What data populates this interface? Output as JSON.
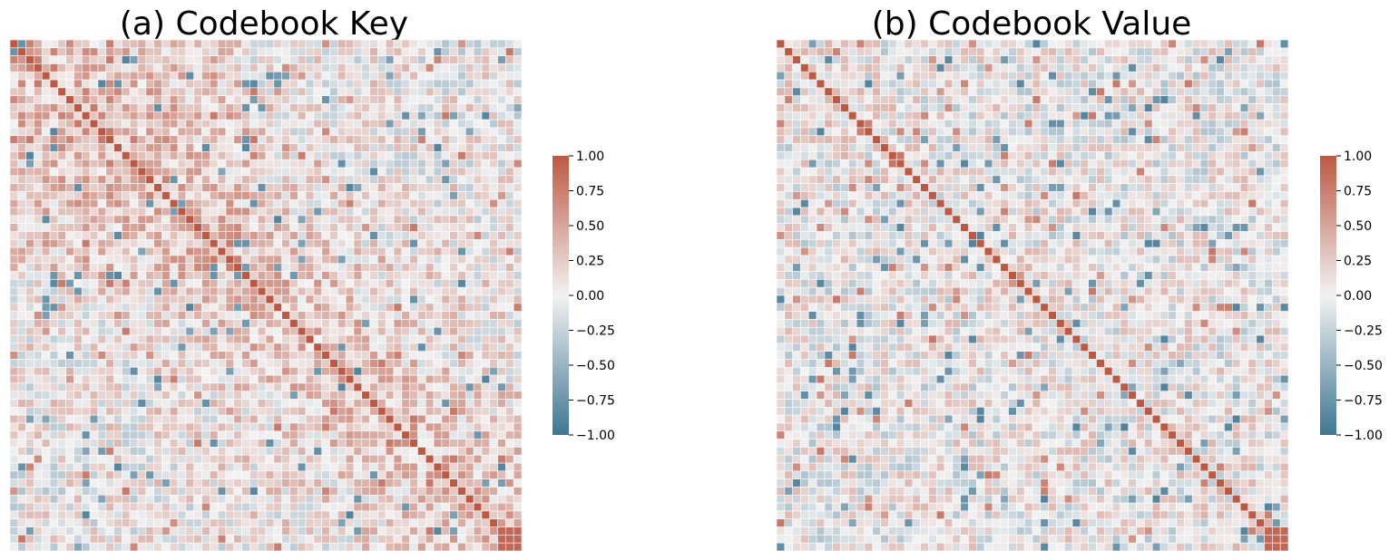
{
  "chart_data": [
    {
      "type": "heatmap",
      "title": "(a) Codebook Key",
      "xlabel": "",
      "ylabel": "",
      "n": 64,
      "matrix_form": "symmetric correlation matrix with unit diagonal",
      "diagonal_value": 1.0,
      "block_near_diagonal": "dense positive correlations (~0.2-0.5) in upper-left region",
      "colorbar": {
        "min": -1.0,
        "max": 1.0,
        "ticks": [
          "1.00",
          "0.75",
          "0.50",
          "0.25",
          "0.00",
          "−0.25",
          "−0.50",
          "−0.75",
          "−1.00"
        ],
        "tick_values": [
          1.0,
          0.75,
          0.5,
          0.25,
          0.0,
          -0.25,
          -0.5,
          -0.75,
          -1.0
        ],
        "colormap": "diverging",
        "color_negative": "#3e7693",
        "color_center": "#f2f2f2",
        "color_positive": "#bd5843"
      }
    },
    {
      "type": "heatmap",
      "title": "(b) Codebook Value",
      "xlabel": "",
      "ylabel": "",
      "n": 64,
      "matrix_form": "symmetric correlation matrix with unit diagonal",
      "diagonal_value": 1.0,
      "block_near_diagonal": "weak off-diagonal structure, values mostly in -0.5..0.5",
      "colorbar": {
        "min": -1.0,
        "max": 1.0,
        "ticks": [
          "1.00",
          "0.75",
          "0.50",
          "0.25",
          "0.00",
          "−0.25",
          "−0.50",
          "−0.75",
          "−1.00"
        ],
        "tick_values": [
          1.0,
          0.75,
          0.5,
          0.25,
          0.0,
          -0.25,
          -0.5,
          -0.75,
          -1.0
        ],
        "colormap": "diverging",
        "color_negative": "#3e7693",
        "color_center": "#f2f2f2",
        "color_positive": "#bd5843"
      }
    }
  ]
}
